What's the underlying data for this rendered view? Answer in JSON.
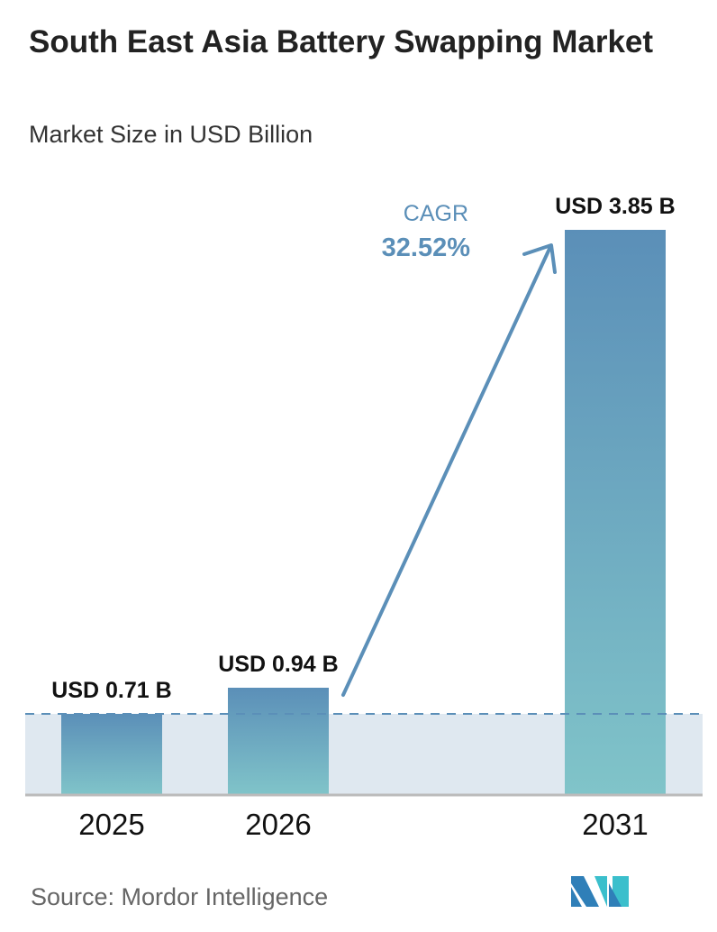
{
  "title": "South East Asia Battery Swapping Market",
  "subtitle": "Market Size in USD Billion",
  "source": "Source:  Mordor Intelligence",
  "logo_text": "MI",
  "colors": {
    "bar_top": "#5b8fb8",
    "bar_bottom": "#80c4c9",
    "shade": "#dfe8f0",
    "arrow": "#5b8fb8",
    "cagr_text": "#5b8fb8"
  },
  "chart_data": {
    "type": "bar",
    "categories": [
      "2025",
      "2026",
      "2031"
    ],
    "values": [
      0.71,
      0.94,
      3.85
    ],
    "data_labels": [
      "USD 0.71 B",
      "USD 0.94 B",
      "USD 3.85 B"
    ],
    "ylabel": "Market Size in USD Billion",
    "annotation": {
      "label": "CAGR",
      "value": "32.52%"
    },
    "grid": false,
    "reference_line": 0.71
  }
}
